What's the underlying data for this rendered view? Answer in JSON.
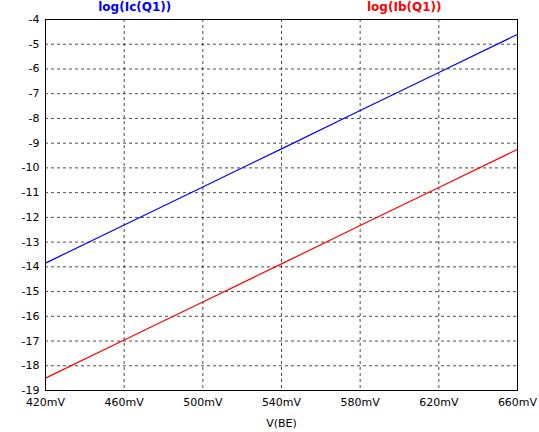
{
  "chart_data": {
    "type": "line",
    "x_label": "V(BE)",
    "x": [
      420,
      460,
      500,
      540,
      580,
      620,
      660
    ],
    "series": [
      {
        "name": "log(Ic(Q1))",
        "color": "#0000ff",
        "values": [
          -13.85,
          -12.31,
          -10.77,
          -9.23,
          -7.68,
          -6.14,
          -4.6
        ]
      },
      {
        "name": "log(Ib(Q1))",
        "color": "#ff0000",
        "values": [
          -18.5,
          -16.96,
          -15.42,
          -13.88,
          -12.33,
          -10.79,
          -9.25
        ]
      }
    ],
    "xlim": [
      420,
      660
    ],
    "xticks": [
      {
        "value": 420,
        "label": "420mV"
      },
      {
        "value": 460,
        "label": "460mV"
      },
      {
        "value": 500,
        "label": "500mV"
      },
      {
        "value": 540,
        "label": "540mV"
      },
      {
        "value": 580,
        "label": "580mV"
      },
      {
        "value": 620,
        "label": "620mV"
      },
      {
        "value": 660,
        "label": "660mV"
      }
    ],
    "ylim": [
      -19,
      -4
    ],
    "yticks": [
      -19,
      -18,
      -17,
      -16,
      -15,
      -14,
      -13,
      -12,
      -11,
      -10,
      -9,
      -8,
      -7,
      -6,
      -5,
      -4
    ],
    "grid": true
  }
}
